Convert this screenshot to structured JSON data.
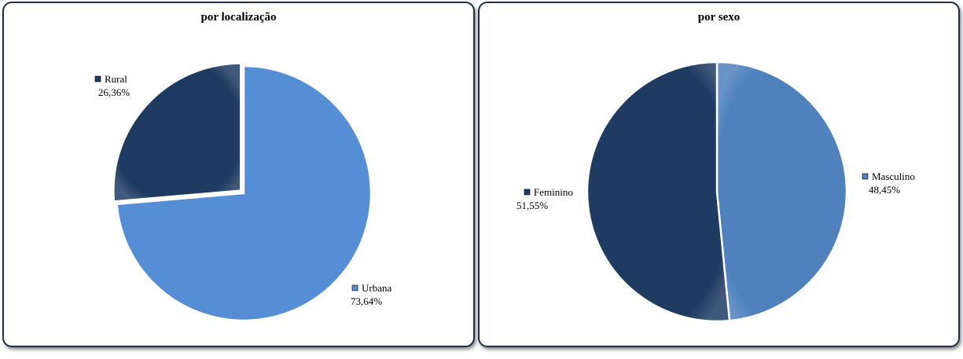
{
  "chart_data": [
    {
      "type": "pie",
      "title": "por localização",
      "slices": [
        {
          "label": "Urbana",
          "value": 73.64,
          "value_label": "73,64%",
          "color": "#558ed5",
          "exploded": false
        },
        {
          "label": "Rural",
          "value": 26.36,
          "value_label": "26,36%",
          "color": "#1f3b62",
          "exploded": true
        }
      ]
    },
    {
      "type": "pie",
      "title": "por sexo",
      "slices": [
        {
          "label": "Masculino",
          "value": 48.45,
          "value_label": "48,45%",
          "color": "#4f81bd",
          "exploded": false
        },
        {
          "label": "Feminino",
          "value": 51.55,
          "value_label": "51,55%",
          "color": "#1f3b62",
          "exploded": false
        }
      ]
    }
  ]
}
